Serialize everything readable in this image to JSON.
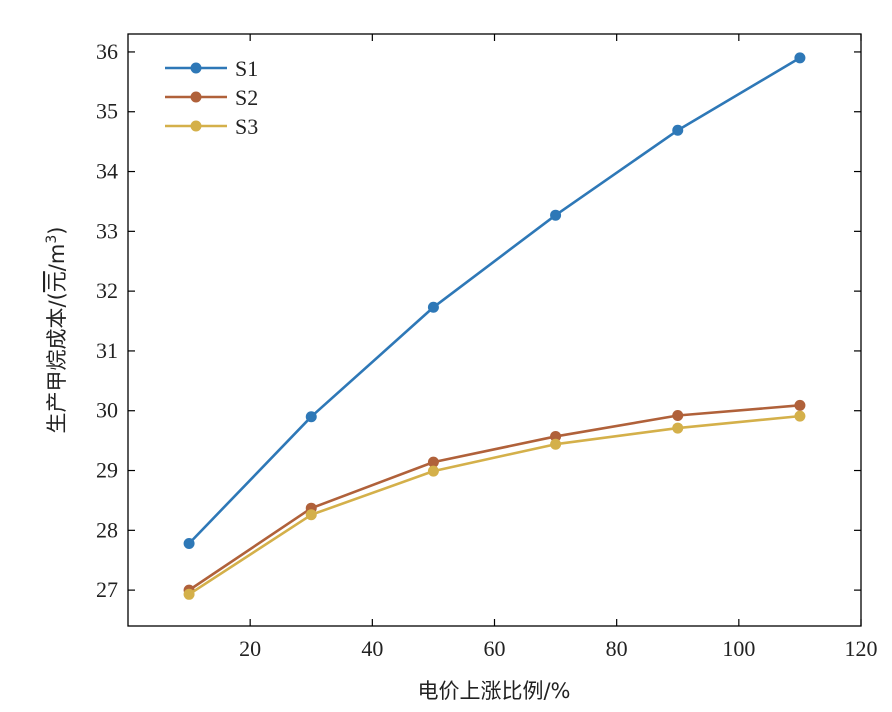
{
  "chart_data": {
    "type": "line",
    "title": "",
    "xlabel": "电价上涨比例/%",
    "ylabel_prefix": "生产甲烷成本/(",
    "ylabel_unit_bar": "元",
    "ylabel_unit_slash": "/m",
    "ylabel_sup": "3",
    "ylabel_suffix": ")",
    "xlim": [
      0,
      120
    ],
    "ylim": [
      26.4,
      36.3
    ],
    "xticks": [
      20,
      40,
      60,
      80,
      100,
      120
    ],
    "yticks": [
      27,
      28,
      29,
      30,
      31,
      32,
      33,
      34,
      35,
      36
    ],
    "grid": false,
    "legend_position": "top-left",
    "x": [
      10,
      30,
      50,
      70,
      90,
      110
    ],
    "series": [
      {
        "name": "S1",
        "color": "#2e78b7",
        "values": [
          27.78,
          29.9,
          31.73,
          33.27,
          34.69,
          35.9
        ]
      },
      {
        "name": "S2",
        "color": "#b0613a",
        "values": [
          27.0,
          28.37,
          29.14,
          29.57,
          29.92,
          30.09
        ]
      },
      {
        "name": "S3",
        "color": "#d4b04a",
        "values": [
          26.93,
          28.26,
          28.99,
          29.44,
          29.71,
          29.91
        ]
      }
    ]
  }
}
